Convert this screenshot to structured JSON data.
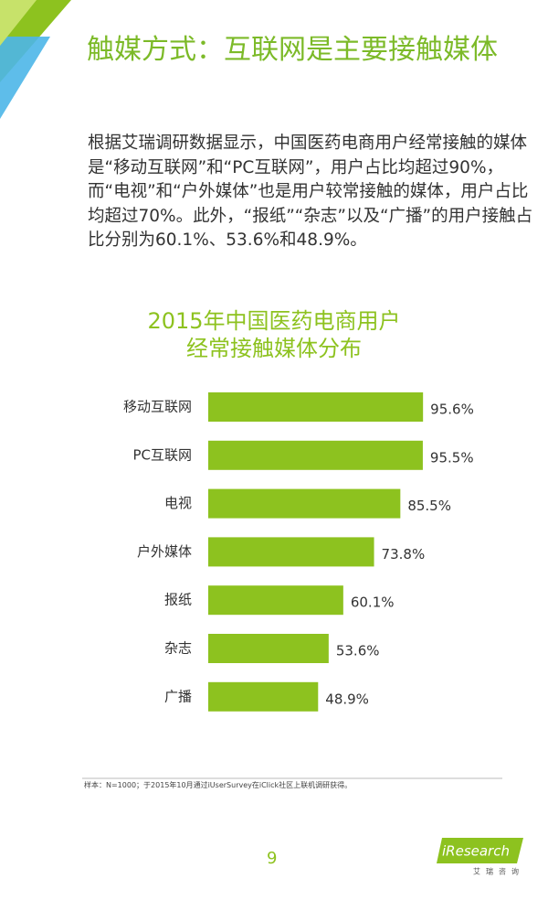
{
  "title": "触媒方式：互联网是主要接触媒体",
  "body": "根据艾瑞调研数据显示，中国医药电商用户经常接触的媒体是“移动互联网”和“PC互联网”，用户占比均超过90%，而“电视”和“户外媒体”也是用户较常接触的媒体，用户占比均超过70%。此外，“报纸”“杂志”以及“广播”的用户接触占比分别为60.1%、53.6%和48.9%。",
  "chart_data": {
    "type": "hbar",
    "title": "2015年中国医药电商用户经常接触媒体分布",
    "categories": [
      "移动互联网",
      "PC互联网",
      "电视",
      "户外媒体",
      "报纸",
      "杂志",
      "广播"
    ],
    "values": [
      95.6,
      95.5,
      85.5,
      73.8,
      60.1,
      53.6,
      48.9
    ],
    "value_labels": [
      "95.6%",
      "95.5%",
      "85.5%",
      "73.8%",
      "60.1%",
      "53.6%",
      "48.9%"
    ],
    "color": "#8dc21f"
  },
  "footnote": "样本：N=1000；于2015年10月通过iUserSurvey在iClick社区上联机调研获得。",
  "page_number": "9",
  "logo": {
    "name": "iResearch",
    "subtitle": "艾瑞咨询"
  }
}
